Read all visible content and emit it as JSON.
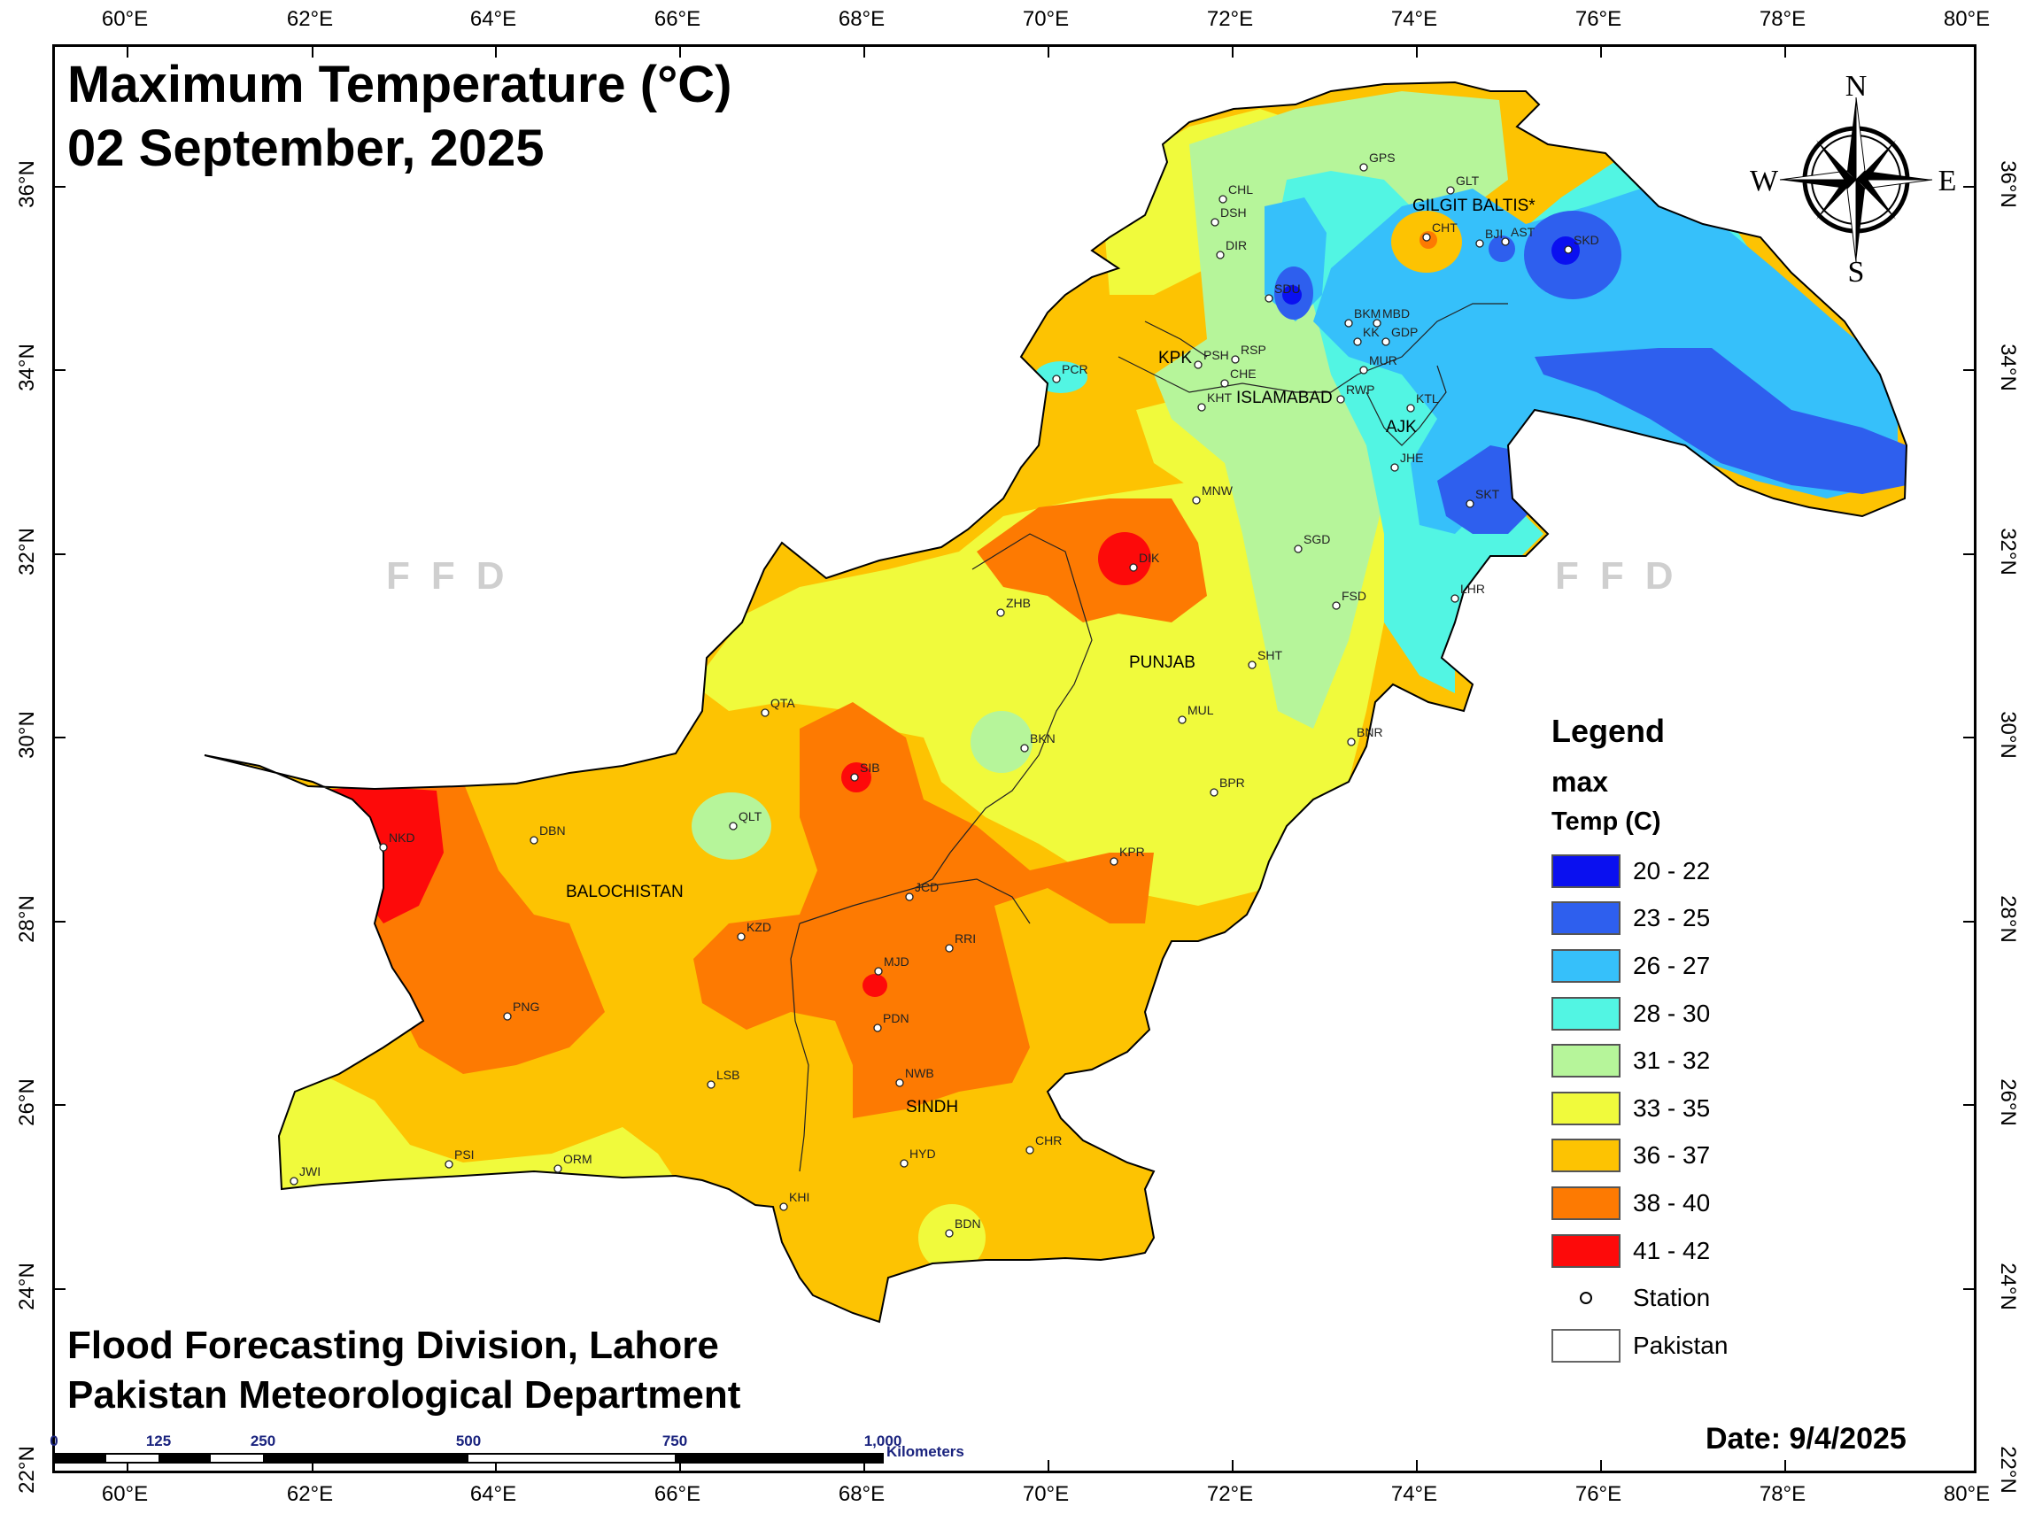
{
  "title_line1": "Maximum Temperature (°C)",
  "title_line2": "02 September, 2025",
  "credit_line1": "Flood Forecasting Division, Lahore",
  "credit_line2": "Pakistan Meteorological Department",
  "date": "Date: 9/4/2025",
  "watermark": "FFD",
  "axes": {
    "lon_ticks": [
      "60°E",
      "62°E",
      "64°E",
      "66°E",
      "68°E",
      "70°E",
      "72°E",
      "74°E",
      "76°E",
      "78°E",
      "80°E"
    ],
    "lat_ticks": [
      "36°N",
      "34°N",
      "32°N",
      "30°N",
      "28°N",
      "26°N",
      "24°N",
      "22°N"
    ]
  },
  "compass": {
    "n": "N",
    "s": "S",
    "e": "E",
    "w": "W"
  },
  "legend": {
    "heading": "Legend",
    "field": "max",
    "unit": "Temp (C)",
    "classes": [
      {
        "label": "20 - 22",
        "color": "#0a10f0"
      },
      {
        "label": "23 - 25",
        "color": "#2e5fee"
      },
      {
        "label": "26 - 27",
        "color": "#36c0fa"
      },
      {
        "label": "28 - 30",
        "color": "#52f5e3"
      },
      {
        "label": "31 - 32",
        "color": "#b6f59a"
      },
      {
        "label": "33 - 35",
        "color": "#f0fa3c"
      },
      {
        "label": "36 - 37",
        "color": "#fdc302"
      },
      {
        "label": "38 - 40",
        "color": "#fd7a02"
      },
      {
        "label": "41 - 42",
        "color": "#fd0a0a"
      }
    ],
    "station_label": "Station",
    "pakistan_label": "Pakistan"
  },
  "scale_bar": {
    "ticks": [
      "0",
      "125",
      "250",
      "500",
      "750",
      "1,000"
    ],
    "unit": "Kilometers"
  },
  "provinces": [
    "GILGIT BALTIS*",
    "KPK",
    "ISLAMABAD",
    "AJK",
    "PUNJAB",
    "BALOCHISTAN",
    "SINDH"
  ],
  "stations": [
    "GPS",
    "GLT",
    "CHL",
    "DSH",
    "DIR",
    "CHT",
    "BJI",
    "AST",
    "SKD",
    "SDU",
    "BKM",
    "MBD",
    "KK",
    "GDP",
    "PCR",
    "PSH",
    "RSP",
    "CHE",
    "MUR",
    "KHT",
    "RWP",
    "KTL",
    "JHE",
    "MNW",
    "SKT",
    "SGD",
    "DIK",
    "ZHB",
    "LHR",
    "FSD",
    "SHT",
    "QTA",
    "MUL",
    "BKN",
    "BNR",
    "SIB",
    "BPR",
    "DBN",
    "QLT",
    "NKD",
    "KPR",
    "JCD",
    "KZD",
    "RRI",
    "MJD",
    "PNG",
    "PDN",
    "NWB",
    "LSB",
    "CHR",
    "HYD",
    "PSI",
    "JWI",
    "ORM",
    "KHI",
    "BDN"
  ]
}
